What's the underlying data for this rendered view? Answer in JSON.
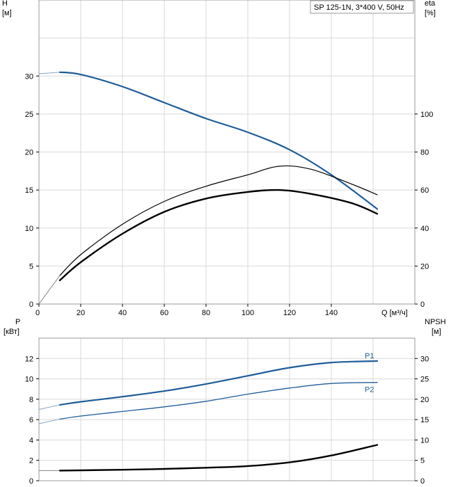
{
  "chart_data": [
    {
      "type": "line",
      "title": "SP 125-1N, 3*400 V, 50Hz",
      "left_axis": {
        "label": "H",
        "unit": "[м]",
        "range": [
          0,
          40
        ],
        "ticks": [
          0,
          5,
          10,
          15,
          20,
          25,
          30
        ]
      },
      "right_axis": {
        "label": "eta",
        "unit": "[%]",
        "range": [
          0,
          160
        ],
        "ticks": [
          0,
          20,
          40,
          60,
          80,
          100
        ]
      },
      "x_axis": {
        "label": "Q [м³/ч]",
        "range": [
          0,
          180
        ],
        "ticks": [
          0,
          20,
          40,
          60,
          80,
          100,
          120,
          140
        ]
      },
      "grid": true,
      "series": [
        {
          "name": "",
          "color": "#1f5c99",
          "axis": "left",
          "extension_points": [
            [
              0,
              30.3
            ],
            [
              10,
              30.5
            ]
          ],
          "points": [
            [
              10,
              30.5
            ],
            [
              20,
              30.2
            ],
            [
              40,
              28.6
            ],
            [
              60,
              26.5
            ],
            [
              80,
              24.4
            ],
            [
              100,
              22.6
            ],
            [
              120,
              20.3
            ],
            [
              140,
              17.0
            ],
            [
              162,
              12.5
            ]
          ]
        },
        {
          "name": "",
          "color": "#000000",
          "axis": "right",
          "extension_points": [
            [
              0,
              0
            ],
            [
              10,
              15
            ]
          ],
          "points": [
            [
              10,
              15
            ],
            [
              20,
              26
            ],
            [
              40,
              42
            ],
            [
              60,
              54
            ],
            [
              80,
              62
            ],
            [
              100,
              68
            ],
            [
              115,
              72.5
            ],
            [
              130,
              71
            ],
            [
              150,
              63
            ],
            [
              162,
              57.5
            ]
          ]
        },
        {
          "name": "",
          "color": "#000000",
          "axis": "right",
          "points": [
            [
              10,
              12.5
            ],
            [
              20,
              22
            ],
            [
              40,
              37
            ],
            [
              60,
              48.5
            ],
            [
              80,
              55.5
            ],
            [
              100,
              59
            ],
            [
              115,
              60
            ],
            [
              130,
              58
            ],
            [
              150,
              53
            ],
            [
              162,
              47.5
            ]
          ]
        }
      ]
    },
    {
      "type": "line",
      "left_axis": {
        "label": "P",
        "unit": "[кВт]",
        "range": [
          0,
          14
        ],
        "ticks": [
          0,
          2,
          4,
          6,
          8,
          10,
          12
        ]
      },
      "right_axis": {
        "label": "NPSH",
        "unit": "[м]",
        "range": [
          0,
          35
        ],
        "ticks": [
          0,
          5,
          10,
          15,
          20,
          25,
          30
        ]
      },
      "x_axis": {
        "range": [
          0,
          180
        ]
      },
      "grid": true,
      "series": [
        {
          "name": "P1",
          "color": "#1f5c99",
          "axis": "left",
          "extension_points": [
            [
              0,
              7.0
            ],
            [
              10,
              7.45
            ]
          ],
          "points": [
            [
              10,
              7.45
            ],
            [
              20,
              7.75
            ],
            [
              40,
              8.25
            ],
            [
              60,
              8.8
            ],
            [
              80,
              9.5
            ],
            [
              100,
              10.3
            ],
            [
              120,
              11.1
            ],
            [
              140,
              11.6
            ],
            [
              162,
              11.75
            ]
          ]
        },
        {
          "name": "P2",
          "color": "#1f5c99",
          "axis": "left",
          "extension_points": [
            [
              0,
              5.6
            ],
            [
              10,
              6.05
            ]
          ],
          "points": [
            [
              10,
              6.05
            ],
            [
              20,
              6.35
            ],
            [
              40,
              6.8
            ],
            [
              60,
              7.25
            ],
            [
              80,
              7.8
            ],
            [
              100,
              8.5
            ],
            [
              120,
              9.1
            ],
            [
              140,
              9.55
            ],
            [
              162,
              9.65
            ]
          ]
        },
        {
          "name": "",
          "color": "#000000",
          "axis": "right",
          "extension_points": [
            [
              0,
              2.5
            ],
            [
              10,
              2.5
            ]
          ],
          "points": [
            [
              10,
              2.5
            ],
            [
              40,
              2.7
            ],
            [
              60,
              2.9
            ],
            [
              80,
              3.2
            ],
            [
              100,
              3.6
            ],
            [
              120,
              4.5
            ],
            [
              140,
              6.2
            ],
            [
              162,
              8.8
            ]
          ]
        }
      ]
    }
  ]
}
